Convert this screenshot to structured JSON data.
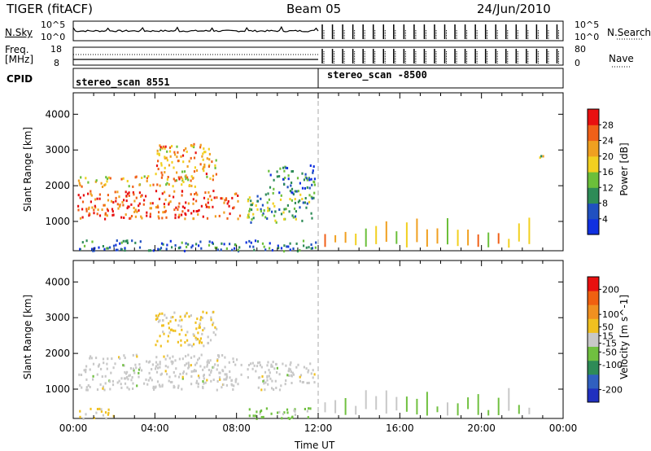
{
  "header": {
    "title": "TIGER (fitACF)",
    "beam": "Beam 05",
    "date": "24/Jun/2010"
  },
  "status_panels": {
    "nsky_label": "N.Sky",
    "nsky_ticks": [
      "10^5",
      "10^0"
    ],
    "freq_label": "Freq.",
    "freq_unit": "[MHz]",
    "freq_ticks": [
      "18",
      "8"
    ],
    "cpid_label": "CPID",
    "nsearch_label": "N.Search",
    "nsearch_ticks": [
      "10^5",
      "10^0"
    ],
    "nave_label": "Nave",
    "nave_ticks": [
      "80",
      "0"
    ],
    "cpid_modes": [
      {
        "label": "stereo_scan  8551",
        "start": "00:00",
        "end": "12:00"
      },
      {
        "label": "stereo_scan  -8500",
        "start": "12:00",
        "end": "24:00"
      }
    ]
  },
  "colors": {
    "power_scale": [
      "#1030e0",
      "#2050c0",
      "#2e8b57",
      "#6bbf3a",
      "#f2d020",
      "#f0a020",
      "#f06018",
      "#e81010"
    ],
    "velocity_scale": [
      "#2030c0",
      "#3060c0",
      "#2e8b57",
      "#70c040",
      "#c8c8c8",
      "#f0c020",
      "#f09020",
      "#f06010",
      "#e81010"
    ]
  },
  "chart_data": [
    {
      "type": "heatmap",
      "panel": "power",
      "xlabel": "Time UT",
      "ylabel": "Slant Range [km]",
      "xlim": [
        "00:00",
        "24:00"
      ],
      "ylim": [
        180,
        4600
      ],
      "x_ticks": [
        "00:00",
        "04:00",
        "08:00",
        "12:00",
        "16:00",
        "20:00",
        "00:00"
      ],
      "y_ticks": [
        1000,
        2000,
        3000,
        4000
      ],
      "colorbar": {
        "label": "Power [dB]",
        "ticks": [
          4,
          8,
          12,
          16,
          20,
          24,
          28
        ],
        "range": [
          0,
          32
        ]
      },
      "regions": [
        {
          "t0": 0.2,
          "t1": 8.2,
          "r0": 1100,
          "r1": 1900,
          "value": 27
        },
        {
          "t0": 0.2,
          "t1": 6.0,
          "r0": 2000,
          "r1": 2300,
          "value": 20
        },
        {
          "t0": 0.2,
          "t1": 12.0,
          "r0": 200,
          "r1": 500,
          "value": 8
        },
        {
          "t0": 4.0,
          "t1": 7.0,
          "r0": 2200,
          "r1": 3200,
          "value": 22
        },
        {
          "t0": 8.5,
          "t1": 11.8,
          "r0": 1000,
          "r1": 1800,
          "value": 13
        },
        {
          "t0": 9.5,
          "t1": 11.8,
          "r0": 1800,
          "r1": 2600,
          "value": 8
        },
        {
          "t0": 22.8,
          "t1": 23.0,
          "r0": 2600,
          "r1": 3000,
          "value": 16
        }
      ]
    },
    {
      "type": "heatmap",
      "panel": "velocity",
      "xlabel": "Time UT",
      "ylabel": "Slant Range [km]",
      "xlim": [
        "00:00",
        "24:00"
      ],
      "ylim": [
        180,
        4600
      ],
      "x_ticks": [
        "00:00",
        "04:00",
        "08:00",
        "12:00",
        "16:00",
        "20:00",
        "00:00"
      ],
      "y_ticks": [
        1000,
        2000,
        3000,
        4000
      ],
      "colorbar": {
        "label": "Velocity [m s^-1]",
        "ticks": [
          200,
          100,
          50,
          15,
          -15,
          -50,
          -100,
          -200
        ],
        "range": [
          -250,
          250
        ]
      },
      "regions": [
        {
          "t0": 0.2,
          "t1": 8.2,
          "r0": 1000,
          "r1": 2000,
          "value": 0
        },
        {
          "t0": 4.0,
          "t1": 7.0,
          "r0": 2200,
          "r1": 3200,
          "value": 40
        },
        {
          "t0": 0.2,
          "t1": 2.0,
          "r0": 200,
          "r1": 500,
          "value": 40
        },
        {
          "t0": 8.5,
          "t1": 11.8,
          "r0": 200,
          "r1": 500,
          "value": -40
        },
        {
          "t0": 8.5,
          "t1": 11.8,
          "r0": 1000,
          "r1": 1800,
          "value": 0
        }
      ]
    }
  ]
}
